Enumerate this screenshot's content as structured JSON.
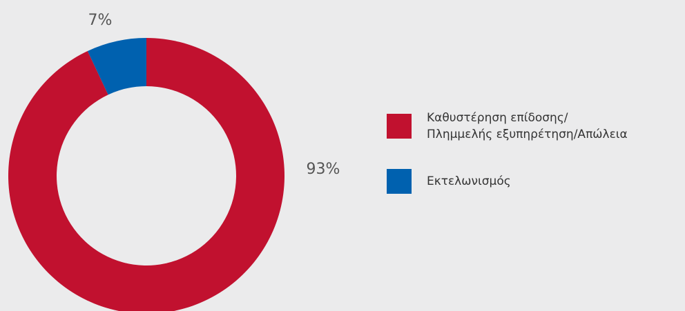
{
  "chart_data": {
    "type": "pie",
    "categories": [
      "Καθυστέρηση επίδοσης/\nΠλημμελής εξυπηρέτηση/Απώλεια",
      "Εκτελωνισμός"
    ],
    "values": [
      93,
      7
    ],
    "value_labels": [
      "93%",
      "7%"
    ],
    "colors": [
      "#c1112f",
      "#0061af"
    ],
    "donut": true
  }
}
